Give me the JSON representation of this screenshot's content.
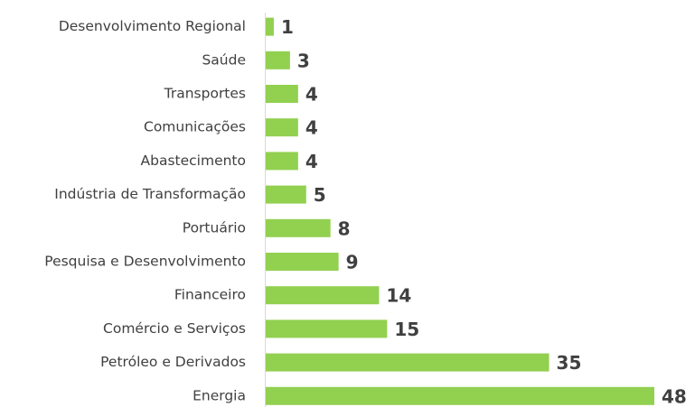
{
  "chart_data": {
    "type": "bar",
    "orientation": "horizontal",
    "categories": [
      "Desenvolvimento Regional",
      "Saúde",
      "Transportes",
      "Comunicações",
      "Abastecimento",
      "Indústria de Transformação",
      "Portuário",
      "Pesquisa e Desenvolvimento",
      "Financeiro",
      "Comércio e Serviços",
      "Petróleo e Derivados",
      "Energia"
    ],
    "values": [
      1,
      3,
      4,
      4,
      4,
      5,
      8,
      9,
      14,
      15,
      35,
      48
    ],
    "color": "#92d050",
    "data_labels": true
  }
}
